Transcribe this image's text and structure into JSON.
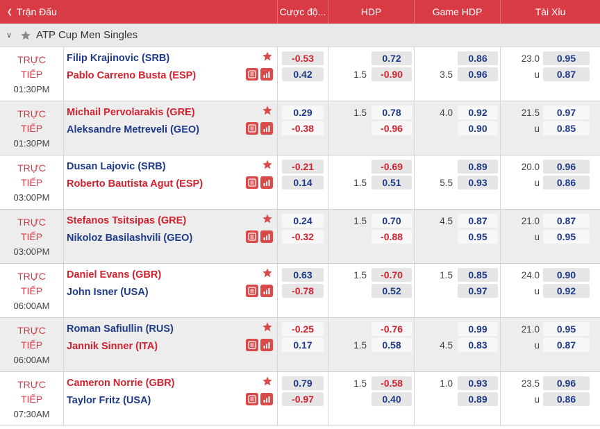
{
  "header": {
    "match": "Trận Đấu",
    "moneyline": "Cược độ...",
    "hdp": "HDP",
    "game_hdp": "Game HDP",
    "over_under": "Tài Xỉu"
  },
  "league": {
    "name": "ATP Cup Men Singles"
  },
  "matches": [
    {
      "live": "TRỰC",
      "live2": "TIẾP",
      "time": "01:30PM",
      "team1": "Filip Krajinovic (SRB)",
      "team1_color": "blue",
      "team2": "Pablo Carreno Busta (ESP)",
      "team2_color": "red",
      "ml1": "-0.53",
      "ml2": "0.42",
      "hdp_line1": "",
      "hdp1": "0.72",
      "hdp_line2": "1.5",
      "hdp2": "-0.90",
      "ghdp_line1": "",
      "ghdp1": "0.86",
      "ghdp_line2": "3.5",
      "ghdp2": "0.96",
      "ou_line": "23.0",
      "ou1": "0.95",
      "ou_u": "u",
      "ou2": "0.87"
    },
    {
      "live": "TRỰC",
      "live2": "TIẾP",
      "time": "01:30PM",
      "team1": "Michail Pervolarakis (GRE)",
      "team1_color": "red",
      "team2": "Aleksandre Metreveli (GEO)",
      "team2_color": "blue",
      "ml1": "0.29",
      "ml2": "-0.38",
      "hdp_line1": "1.5",
      "hdp1": "0.78",
      "hdp_line2": "",
      "hdp2": "-0.96",
      "ghdp_line1": "4.0",
      "ghdp1": "0.92",
      "ghdp_line2": "",
      "ghdp2": "0.90",
      "ou_line": "21.5",
      "ou1": "0.97",
      "ou_u": "u",
      "ou2": "0.85"
    },
    {
      "live": "TRỰC",
      "live2": "TIẾP",
      "time": "03:00PM",
      "team1": "Dusan Lajovic (SRB)",
      "team1_color": "blue",
      "team2": "Roberto Bautista Agut (ESP)",
      "team2_color": "red",
      "ml1": "-0.21",
      "ml2": "0.14",
      "hdp_line1": "",
      "hdp1": "-0.69",
      "hdp_line2": "1.5",
      "hdp2": "0.51",
      "ghdp_line1": "",
      "ghdp1": "0.89",
      "ghdp_line2": "5.5",
      "ghdp2": "0.93",
      "ou_line": "20.0",
      "ou1": "0.96",
      "ou_u": "u",
      "ou2": "0.86"
    },
    {
      "live": "TRỰC",
      "live2": "TIẾP",
      "time": "03:00PM",
      "team1": "Stefanos Tsitsipas (GRE)",
      "team1_color": "red",
      "team2": "Nikoloz Basilashvili (GEO)",
      "team2_color": "blue",
      "ml1": "0.24",
      "ml2": "-0.32",
      "hdp_line1": "1.5",
      "hdp1": "0.70",
      "hdp_line2": "",
      "hdp2": "-0.88",
      "ghdp_line1": "4.5",
      "ghdp1": "0.87",
      "ghdp_line2": "",
      "ghdp2": "0.95",
      "ou_line": "21.0",
      "ou1": "0.87",
      "ou_u": "u",
      "ou2": "0.95"
    },
    {
      "live": "TRỰC",
      "live2": "TIẾP",
      "time": "06:00AM",
      "team1": "Daniel Evans (GBR)",
      "team1_color": "red",
      "team2": "John Isner (USA)",
      "team2_color": "blue",
      "ml1": "0.63",
      "ml2": "-0.78",
      "hdp_line1": "1.5",
      "hdp1": "-0.70",
      "hdp_line2": "",
      "hdp2": "0.52",
      "ghdp_line1": "1.5",
      "ghdp1": "0.85",
      "ghdp_line2": "",
      "ghdp2": "0.97",
      "ou_line": "24.0",
      "ou1": "0.90",
      "ou_u": "u",
      "ou2": "0.92"
    },
    {
      "live": "TRỰC",
      "live2": "TIẾP",
      "time": "06:00AM",
      "team1": "Roman Safiullin (RUS)",
      "team1_color": "blue",
      "team2": "Jannik Sinner (ITA)",
      "team2_color": "red",
      "ml1": "-0.25",
      "ml2": "0.17",
      "hdp_line1": "",
      "hdp1": "-0.76",
      "hdp_line2": "1.5",
      "hdp2": "0.58",
      "ghdp_line1": "",
      "ghdp1": "0.99",
      "ghdp_line2": "4.5",
      "ghdp2": "0.83",
      "ou_line": "21.0",
      "ou1": "0.95",
      "ou_u": "u",
      "ou2": "0.87"
    },
    {
      "live": "TRỰC",
      "live2": "TIẾP",
      "time": "07:30AM",
      "team1": "Cameron Norrie (GBR)",
      "team1_color": "red",
      "team2": "Taylor Fritz (USA)",
      "team2_color": "blue",
      "ml1": "0.79",
      "ml2": "-0.97",
      "hdp_line1": "1.5",
      "hdp1": "-0.58",
      "hdp_line2": "",
      "hdp2": "0.40",
      "ghdp_line1": "1.0",
      "ghdp1": "0.93",
      "ghdp_line2": "",
      "ghdp2": "0.89",
      "ou_line": "23.5",
      "ou1": "0.96",
      "ou_u": "u",
      "ou2": "0.86"
    }
  ],
  "icons": {
    "favorite": "star-icon",
    "stats": "bar-chart-icon",
    "scoreboard": "scoreboard-icon",
    "collapse": "chevron-down-icon"
  },
  "colors": {
    "header_bg": "#d93b45",
    "red_text": "#d3222f",
    "blue_text": "#1e3a8a",
    "star": "#d94a4a",
    "row_alt_bg": "#ededed"
  }
}
